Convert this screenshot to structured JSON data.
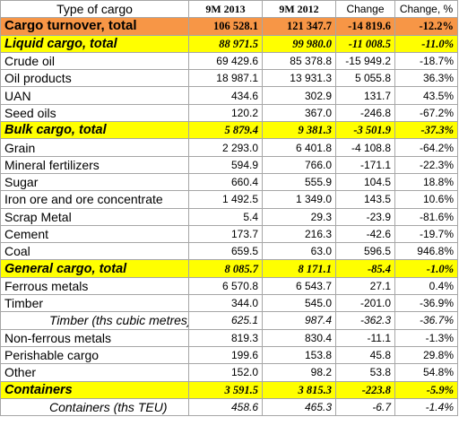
{
  "table": {
    "header": [
      "Type of cargo",
      "9M 2013",
      "9M 2012",
      "Change",
      "Change, %"
    ],
    "rows": [
      {
        "kind": "total",
        "name": "Cargo turnover, total",
        "v2013": "106 528.1",
        "v2012": "121 347.7",
        "change": "-14 819.6",
        "change_pct": "-12.2%"
      },
      {
        "kind": "category",
        "name": "Liquid cargo, total",
        "v2013": "88 971.5",
        "v2012": "99 980.0",
        "change": "-11 008.5",
        "change_pct": "-11.0%"
      },
      {
        "kind": "item",
        "name": "Crude oil",
        "v2013": "69 429.6",
        "v2012": "85 378.8",
        "change": "-15 949.2",
        "change_pct": "-18.7%"
      },
      {
        "kind": "item",
        "name": "Oil products",
        "v2013": "18 987.1",
        "v2012": "13 931.3",
        "change": "5 055.8",
        "change_pct": "36.3%"
      },
      {
        "kind": "item",
        "name": "UAN",
        "v2013": "434.6",
        "v2012": "302.9",
        "change": "131.7",
        "change_pct": "43.5%"
      },
      {
        "kind": "item",
        "name": "Seed oils",
        "v2013": "120.2",
        "v2012": "367.0",
        "change": "-246.8",
        "change_pct": "-67.2%"
      },
      {
        "kind": "category",
        "name": "Bulk cargo, total",
        "v2013": "5 879.4",
        "v2012": "9 381.3",
        "change": "-3 501.9",
        "change_pct": "-37.3%"
      },
      {
        "kind": "item",
        "name": "Grain",
        "v2013": "2 293.0",
        "v2012": "6 401.8",
        "change": "-4 108.8",
        "change_pct": "-64.2%"
      },
      {
        "kind": "item",
        "name": "Mineral fertilizers",
        "v2013": "594.9",
        "v2012": "766.0",
        "change": "-171.1",
        "change_pct": "-22.3%"
      },
      {
        "kind": "item",
        "name": "Sugar",
        "v2013": "660.4",
        "v2012": "555.9",
        "change": "104.5",
        "change_pct": "18.8%"
      },
      {
        "kind": "item",
        "name": "Iron ore and ore concentrate",
        "v2013": "1 492.5",
        "v2012": "1 349.0",
        "change": "143.5",
        "change_pct": "10.6%"
      },
      {
        "kind": "item",
        "name": "Scrap Metal",
        "v2013": "5.4",
        "v2012": "29.3",
        "change": "-23.9",
        "change_pct": "-81.6%"
      },
      {
        "kind": "item",
        "name": "Cement",
        "v2013": "173.7",
        "v2012": "216.3",
        "change": "-42.6",
        "change_pct": "-19.7%"
      },
      {
        "kind": "item",
        "name": "Coal",
        "v2013": "659.5",
        "v2012": "63.0",
        "change": "596.5",
        "change_pct": "946.8%"
      },
      {
        "kind": "category",
        "name": "General cargo, total",
        "v2013": "8 085.7",
        "v2012": "8 171.1",
        "change": "-85.4",
        "change_pct": "-1.0%"
      },
      {
        "kind": "item",
        "name": "Ferrous metals",
        "v2013": "6 570.8",
        "v2012": "6 543.7",
        "change": "27.1",
        "change_pct": "0.4%"
      },
      {
        "kind": "item",
        "name": "Timber",
        "v2013": "344.0",
        "v2012": "545.0",
        "change": "-201.0",
        "change_pct": "-36.9%"
      },
      {
        "kind": "sub-deep",
        "name": "Timber (ths cubic metres)",
        "v2013": "625.1",
        "v2012": "987.4",
        "change": "-362.3",
        "change_pct": "-36.7%"
      },
      {
        "kind": "item",
        "name": "Non-ferrous metals",
        "v2013": "819.3",
        "v2012": "830.4",
        "change": "-11.1",
        "change_pct": "-1.3%"
      },
      {
        "kind": "item",
        "name": "Perishable cargo",
        "v2013": "199.6",
        "v2012": "153.8",
        "change": "45.8",
        "change_pct": "29.8%"
      },
      {
        "kind": "item",
        "name": "Other",
        "v2013": "152.0",
        "v2012": "98.2",
        "change": "53.8",
        "change_pct": "54.8%"
      },
      {
        "kind": "category",
        "name": "Containers",
        "v2013": "3 591.5",
        "v2012": "3 815.3",
        "change": "-223.8",
        "change_pct": "-5.9%"
      },
      {
        "kind": "sub-deep",
        "name": "Containers (ths TEU)",
        "v2013": "458.6",
        "v2012": "465.3",
        "change": "-6.7",
        "change_pct": "-1.4%"
      }
    ]
  }
}
